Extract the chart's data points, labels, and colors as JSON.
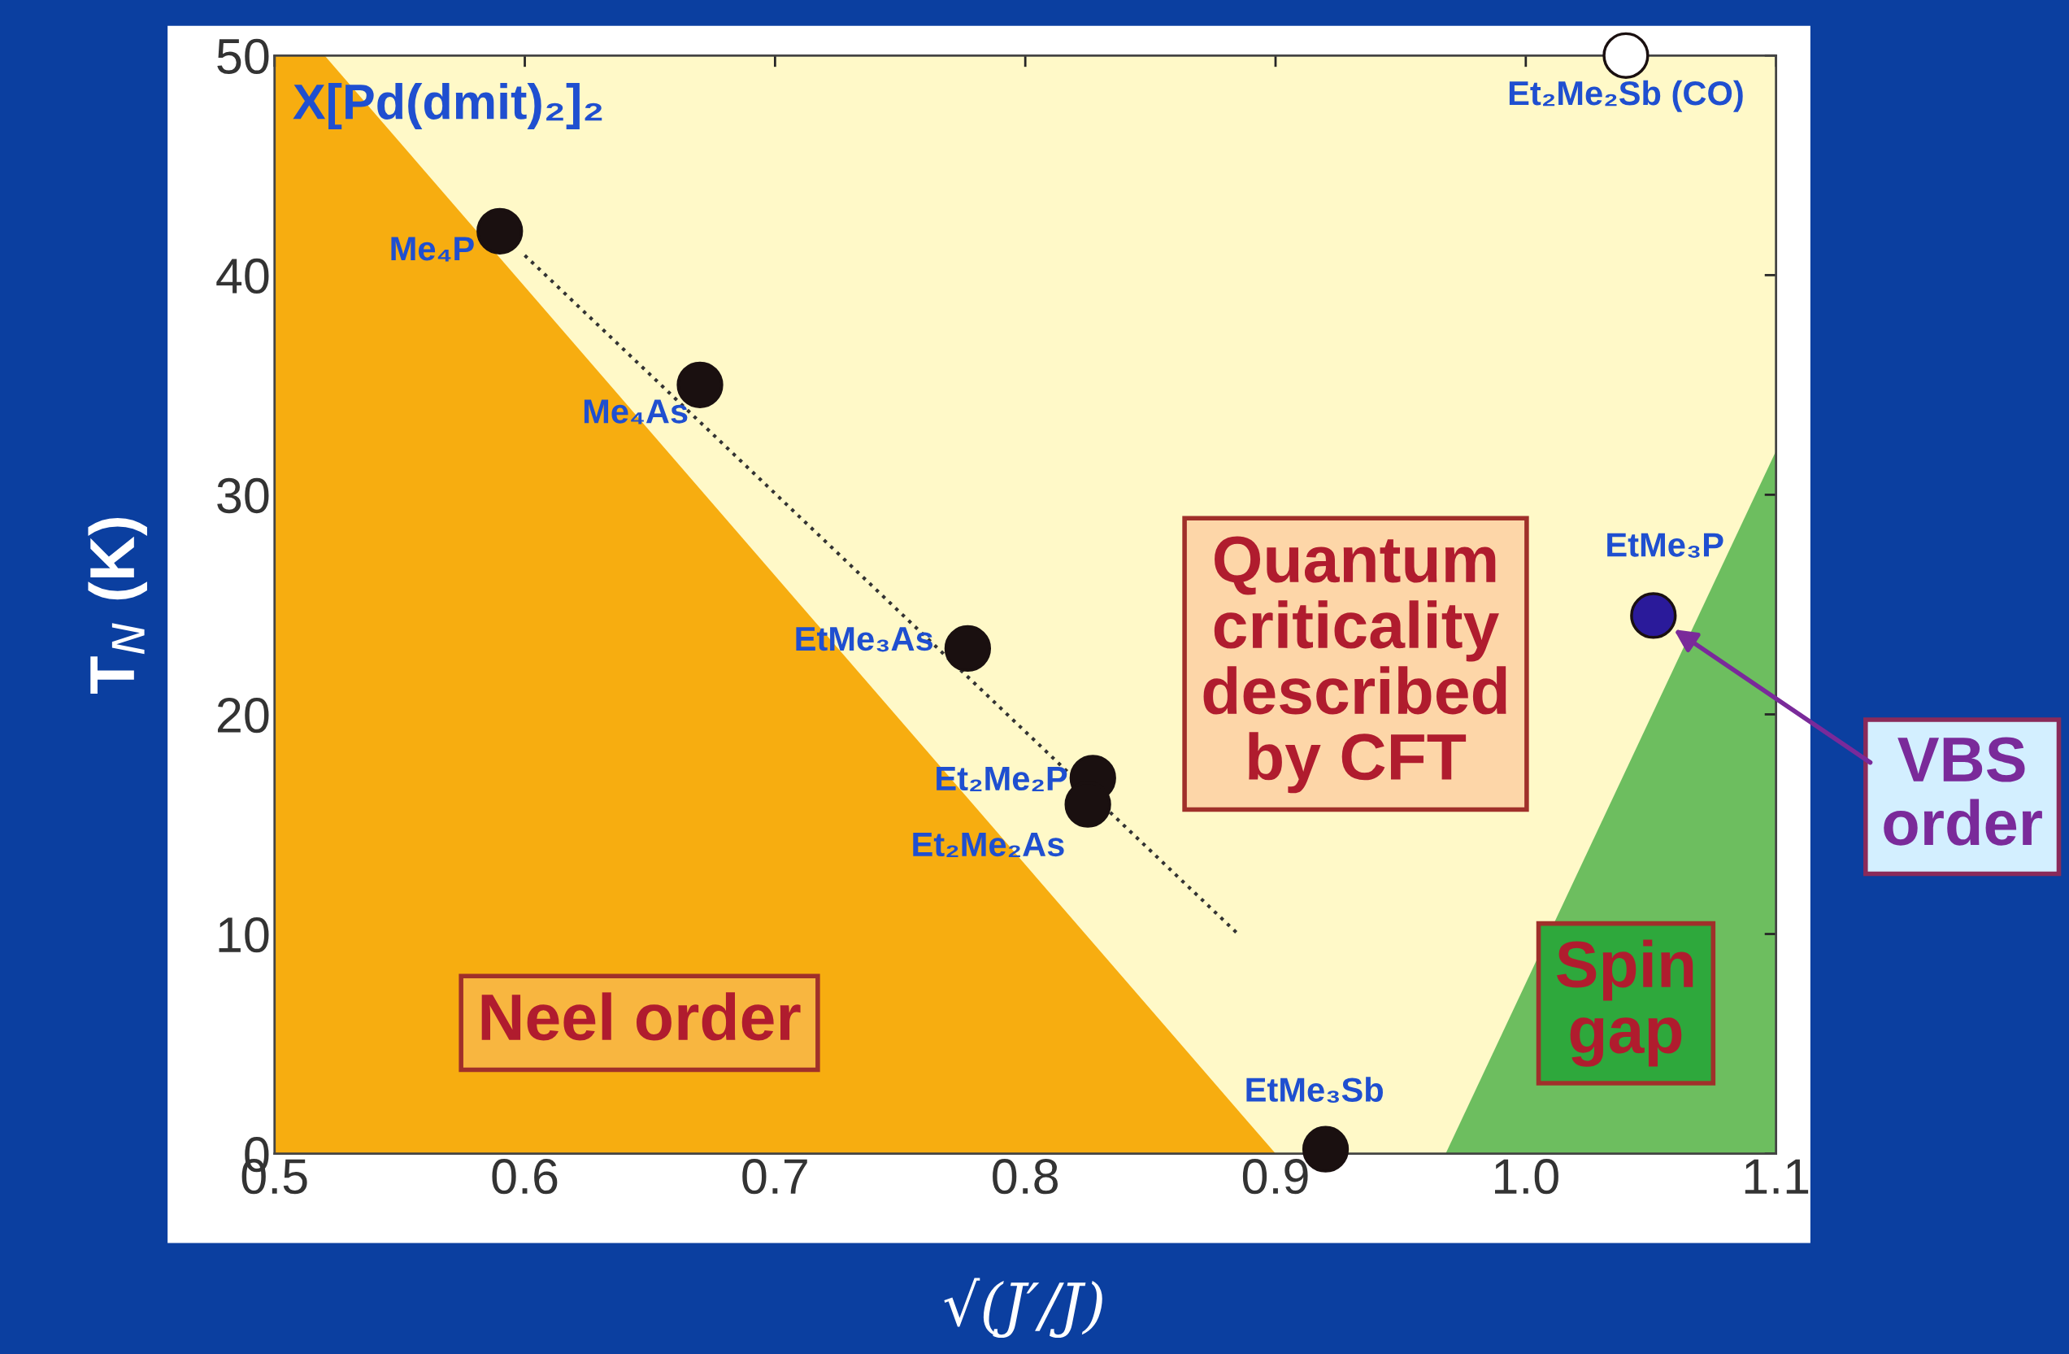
{
  "chart_data": {
    "type": "scatter",
    "title": "X[Pd(dmit)₂]₂",
    "xlabel": "√(J′/J)",
    "ylabel": "T$_{N}$ (K)",
    "xlim": [
      0.5,
      1.1
    ],
    "ylim": [
      0,
      50
    ],
    "xticks": [
      0.5,
      0.6,
      0.7,
      0.8,
      0.9,
      {
        "value": 1.0,
        "label": "1.0"
      },
      1.1
    ],
    "yticks": [
      0,
      10,
      20,
      30,
      40,
      50
    ],
    "grid": false,
    "legend": false,
    "series": [
      {
        "type": "scatter",
        "marker": "circle",
        "x": [
          0.59,
          0.67,
          0.777,
          0.827,
          0.825,
          0.92,
          1.04,
          1.051
        ],
        "values": [
          42,
          35,
          23,
          17.1,
          15.9,
          0.2,
          50,
          24.5
        ],
        "colors": [
          "#1a1010",
          "#1a1010",
          "#1a1010",
          "#1a1010",
          "#1a1010",
          "#1a1010",
          "#ffffff",
          "#2a1a9a"
        ]
      },
      {
        "type": "area",
        "x": [
          0.5,
          0.52,
          0.9
        ],
        "values": [
          50,
          50,
          0
        ],
        "color": "#f7ad10"
      },
      {
        "type": "line",
        "marker": "none",
        "x": [
          0.6,
          0.885
        ],
        "values": [
          40.9,
          10
        ],
        "color": "#333333",
        "line_style": "dotted"
      }
    ],
    "annotations": [
      {
        "text": "Me₄P",
        "x": 0.59,
        "y": 42
      },
      {
        "text": "Me₄As",
        "x": 0.67,
        "y": 35
      },
      {
        "text": "EtMe₃As",
        "x": 0.777,
        "y": 23
      },
      {
        "text": "Et₂Me₂P",
        "x": 0.827,
        "y": 17.1
      },
      {
        "text": "Et₂Me₂As",
        "x": 0.825,
        "y": 15.9
      },
      {
        "text": "EtMe₃Sb",
        "x": 0.92,
        "y": 0.2
      },
      {
        "text": "Et₂Me₂Sb (CO)",
        "x": 1.04,
        "y": 50
      },
      {
        "text": "EtMe₃P",
        "x": 1.051,
        "y": 24.5
      },
      "Quantum\ncriticality\ndescribed\nby CFT",
      "Neel order",
      "Spin\ngap",
      "VBS\norder"
    ]
  }
}
